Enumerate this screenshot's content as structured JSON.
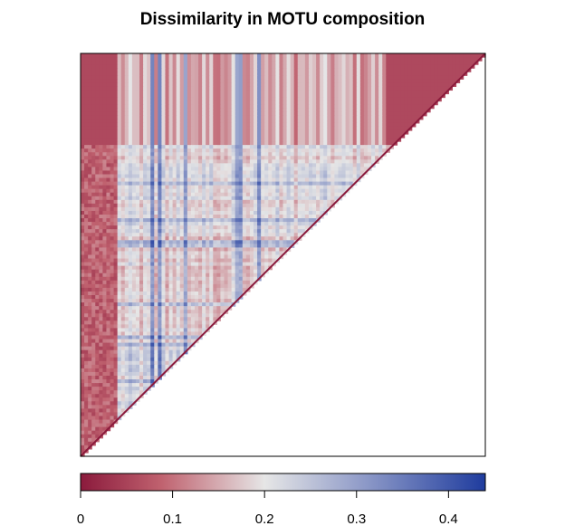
{
  "chart_data": {
    "type": "heatmap",
    "title": "Dissimilarity in MOTU composition",
    "xlabel": "",
    "ylabel": "",
    "shape": "upper-triangular",
    "diagonal_value": 0,
    "grid": false,
    "legend": "bottom colorbar",
    "colorbar": {
      "range": [
        0,
        0.44
      ],
      "ticks": [
        {
          "value": 0,
          "label": "0"
        },
        {
          "value": 0.1,
          "label": "0.1"
        },
        {
          "value": 0.2,
          "label": "0.2"
        },
        {
          "value": 0.3,
          "label": "0.3"
        },
        {
          "value": 0.4,
          "label": "0.4"
        }
      ],
      "colors": {
        "low": "#8b1a3c",
        "mid": "#e6e6e6",
        "high": "#1f3c9e"
      }
    },
    "approx_value_range": [
      0,
      0.44
    ]
  }
}
